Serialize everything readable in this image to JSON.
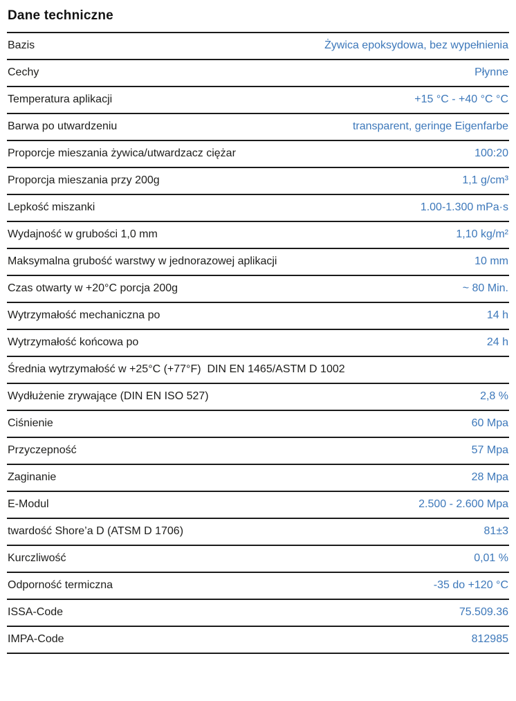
{
  "page_title": "Dane techniczne",
  "colors": {
    "label_text": "#1d1d1b",
    "value_text": "#3d78ba",
    "rule": "#1a1a1a",
    "background": "#ffffff"
  },
  "table": {
    "rows": [
      {
        "label": "Bazis",
        "value": "Żywica epoksydowa, bez wypełnienia"
      },
      {
        "label": "Cechy",
        "value": "Płynne"
      },
      {
        "label": "Temperatura aplikacji",
        "value": "+15 °C - +40 °C °C"
      },
      {
        "label": "Barwa po utwardzeniu",
        "value": "transparent, geringe Eigenfarbe"
      },
      {
        "label": "Proporcje mieszania żywica/utwardzacz ciężar",
        "value": "100:20"
      },
      {
        "label": "Proporcja mieszania przy 200g",
        "value": "1,1 g/cm³"
      },
      {
        "label": "Lepkość miszanki",
        "value": "1.00-1.300 mPa·s"
      },
      {
        "label": "Wydajność w grubości 1,0 mm",
        "value": "1,10 kg/m²"
      },
      {
        "label": "Maksymalna grubość warstwy w jednorazowej aplikacji",
        "value": "10 mm"
      },
      {
        "label": "Czas otwarty w +20°C porcja 200g",
        "value": "~ 80 Min."
      },
      {
        "label": "Wytrzymałość mechaniczna po",
        "value": "14 h"
      },
      {
        "label": "Wytrzymałość końcowa po",
        "value": "24 h"
      },
      {
        "label": "Średnia wytrzymałość w +25°C (+77°F)  DIN EN 1465/ASTM D 1002",
        "value": ""
      },
      {
        "label": "Wydłużenie zrywające (DIN EN ISO 527)",
        "value": "2,8 %"
      },
      {
        "label": "Ciśnienie",
        "value": "60 Mpa"
      },
      {
        "label": "Przyczepność",
        "value": "57 Mpa"
      },
      {
        "label": "Zaginanie",
        "value": "28 Mpa"
      },
      {
        "label": "E-Modul",
        "value": "2.500 - 2.600 Mpa"
      },
      {
        "label": "twardość Shore’a D (ATSM D 1706)",
        "value": "81±3"
      },
      {
        "label": "Kurczliwość",
        "value": "0,01 %"
      },
      {
        "label": "Odporność termiczna",
        "value": "-35 do +120 °C"
      },
      {
        "label": "ISSA-Code",
        "value": "75.509.36"
      },
      {
        "label": "IMPA-Code",
        "value": "812985"
      }
    ]
  }
}
